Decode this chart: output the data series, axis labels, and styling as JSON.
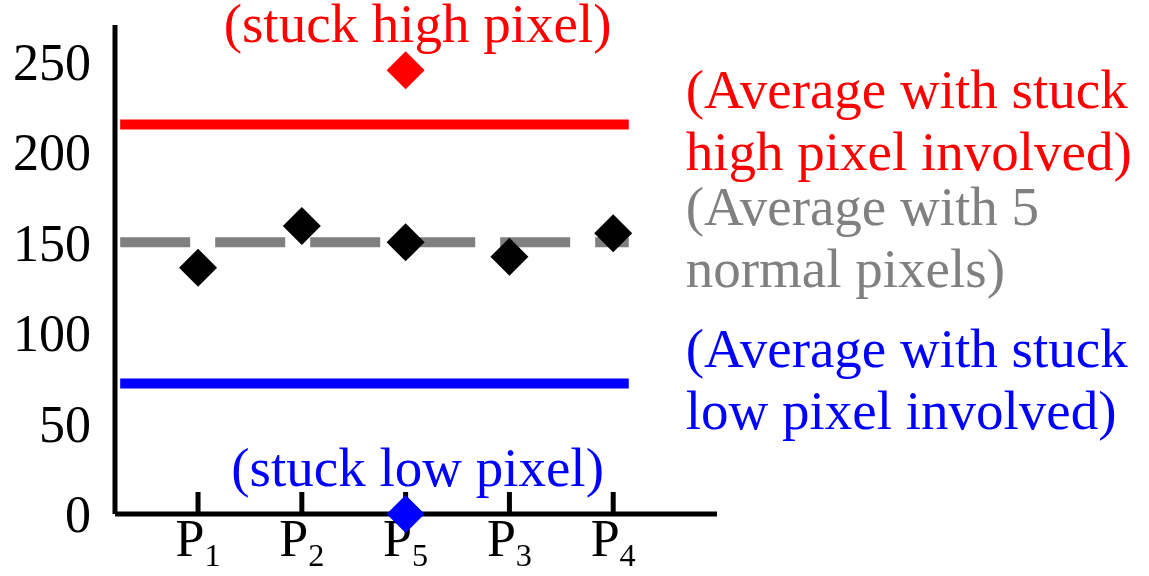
{
  "chart_data": {
    "type": "scatter",
    "categories": [
      "P$_{1}$",
      "P$_{2}$",
      "P$_{5}$",
      "P$_{3}$",
      "P$_{4}$"
    ],
    "series": [
      {
        "color": "#000000",
        "values": [
          136,
          159,
          150,
          142,
          155
        ]
      },
      {
        "name": "(stuck high pixel)",
        "color": "#ff0000",
        "values": [
          null,
          null,
          245,
          null,
          null
        ]
      },
      {
        "name": "(stuck low pixel)",
        "color": "#0000ff",
        "values": [
          null,
          null,
          0,
          null,
          null
        ]
      }
    ],
    "ylim": [
      0,
      270
    ],
    "yticks": [
      0,
      50,
      100,
      150,
      200,
      250
    ],
    "ref_lines": [
      {
        "axis": "y",
        "value": 215,
        "label": "(Average with stuck high pixel involved)",
        "color": "#ff0000",
        "line_style": "solid"
      },
      {
        "axis": "y",
        "value": 150,
        "label": "(Average with 5 normal pixels)",
        "color": "#808080",
        "line_style": "dashed"
      },
      {
        "axis": "y",
        "value": 72,
        "label": "(Average with stuck low pixel involved)",
        "color": "#0000ff",
        "line_style": "solid"
      }
    ],
    "marker": "diamond"
  }
}
